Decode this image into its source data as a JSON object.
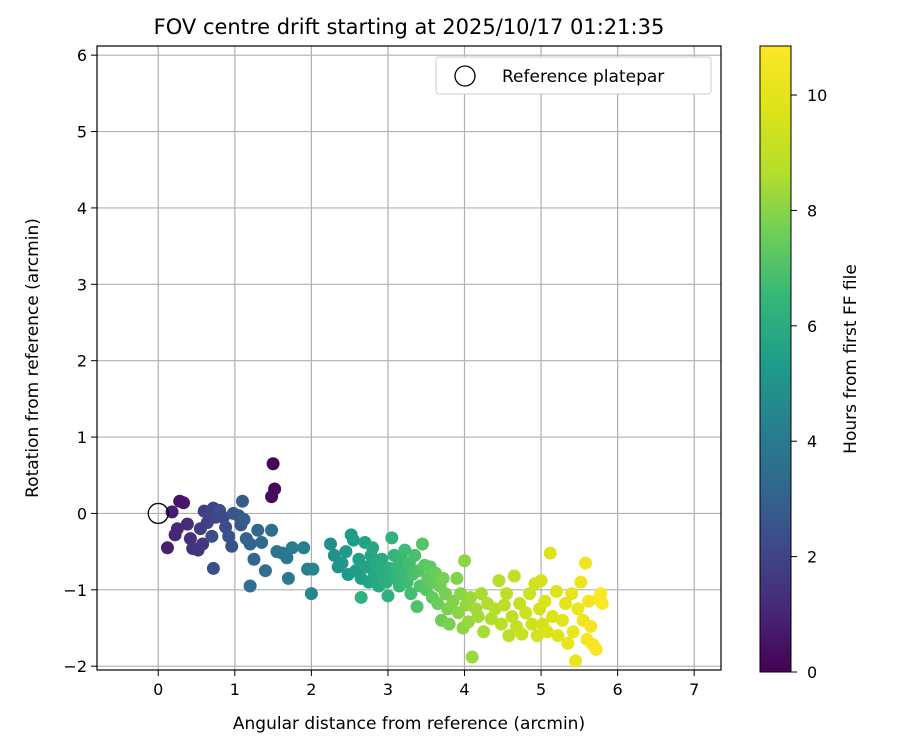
{
  "chart_data": {
    "type": "scatter",
    "title": "FOV centre drift starting at 2025/10/17 01:21:35",
    "xlabel": "Angular distance from reference (arcmin)",
    "ylabel": "Rotation from reference (arcmin)",
    "xlim": [
      -0.8,
      7.35
    ],
    "ylim": [
      -2.05,
      6.12
    ],
    "xticks": [
      0,
      1,
      2,
      3,
      4,
      5,
      6,
      7
    ],
    "yticks": [
      -2,
      -1,
      0,
      1,
      2,
      3,
      4,
      5,
      6
    ],
    "xtick_labels": [
      "0",
      "1",
      "2",
      "3",
      "4",
      "5",
      "6",
      "7"
    ],
    "ytick_labels": [
      "−2",
      "−1",
      "0",
      "1",
      "2",
      "3",
      "4",
      "5",
      "6"
    ],
    "grid": true,
    "legend": {
      "label": "Reference platepar",
      "position": "top-right"
    },
    "reference_point": {
      "x": 0,
      "y": 0
    },
    "colorbar": {
      "label": "Hours from first FF file",
      "range": [
        0,
        10.85
      ],
      "ticks": [
        0,
        2,
        4,
        6,
        8,
        10
      ],
      "tick_labels": [
        "0",
        "2",
        "4",
        "6",
        "8",
        "10"
      ],
      "colormap": "viridis"
    },
    "series": [
      {
        "name": "FOV centre drift",
        "points": [
          [
            1.5,
            0.65,
            0.1
          ],
          [
            1.52,
            0.32,
            0.2
          ],
          [
            1.48,
            0.22,
            0.3
          ],
          [
            0.28,
            0.16,
            0.5
          ],
          [
            0.33,
            0.14,
            0.6
          ],
          [
            0.18,
            0.02,
            0.8
          ],
          [
            0.12,
            -0.45,
            0.9
          ],
          [
            0.22,
            -0.28,
            1.0
          ],
          [
            0.25,
            -0.2,
            1.1
          ],
          [
            0.38,
            -0.14,
            1.2
          ],
          [
            0.42,
            -0.33,
            1.3
          ],
          [
            0.45,
            -0.46,
            1.4
          ],
          [
            0.52,
            -0.48,
            1.5
          ],
          [
            0.58,
            -0.4,
            1.6
          ],
          [
            0.55,
            -0.2,
            1.7
          ],
          [
            0.6,
            0.03,
            1.8
          ],
          [
            0.64,
            -0.12,
            1.9
          ],
          [
            0.7,
            0.0,
            2.0
          ],
          [
            0.72,
            0.07,
            2.0
          ],
          [
            0.75,
            -0.05,
            2.1
          ],
          [
            0.8,
            0.04,
            2.2
          ],
          [
            0.85,
            -0.05,
            2.2
          ],
          [
            0.88,
            -0.18,
            2.3
          ],
          [
            0.7,
            -0.3,
            2.3
          ],
          [
            0.72,
            -0.72,
            2.4
          ],
          [
            0.92,
            -0.3,
            2.5
          ],
          [
            0.96,
            -0.43,
            2.5
          ],
          [
            0.98,
            0.0,
            2.6
          ],
          [
            1.05,
            -0.03,
            2.7
          ],
          [
            1.08,
            -0.15,
            2.7
          ],
          [
            1.1,
            0.16,
            2.8
          ],
          [
            1.12,
            -0.08,
            2.9
          ],
          [
            1.15,
            -0.33,
            3.0
          ],
          [
            1.2,
            -0.4,
            3.1
          ],
          [
            1.25,
            -0.6,
            3.2
          ],
          [
            1.3,
            -0.22,
            3.3
          ],
          [
            1.35,
            -0.38,
            3.4
          ],
          [
            1.4,
            -0.75,
            3.5
          ],
          [
            1.48,
            -0.22,
            3.6
          ],
          [
            1.2,
            -0.95,
            3.6
          ],
          [
            1.55,
            -0.5,
            3.7
          ],
          [
            1.62,
            -0.52,
            3.8
          ],
          [
            1.68,
            -0.58,
            3.9
          ],
          [
            1.7,
            -0.85,
            4.0
          ],
          [
            1.75,
            -0.45,
            4.1
          ],
          [
            1.9,
            -0.45,
            4.2
          ],
          [
            1.95,
            -0.73,
            4.3
          ],
          [
            2.02,
            -0.73,
            4.4
          ],
          [
            2.0,
            -1.05,
            4.5
          ],
          [
            2.25,
            -0.4,
            4.8
          ],
          [
            2.3,
            -0.55,
            4.9
          ],
          [
            2.35,
            -0.7,
            5.0
          ],
          [
            2.4,
            -0.65,
            5.1
          ],
          [
            2.45,
            -0.5,
            5.2
          ],
          [
            2.48,
            -0.8,
            5.2
          ],
          [
            2.52,
            -0.28,
            5.3
          ],
          [
            2.55,
            -0.35,
            5.4
          ],
          [
            2.58,
            -0.75,
            5.4
          ],
          [
            2.62,
            -0.6,
            5.5
          ],
          [
            2.65,
            -0.85,
            5.5
          ],
          [
            2.7,
            -0.38,
            5.6
          ],
          [
            2.72,
            -0.7,
            5.6
          ],
          [
            2.75,
            -0.9,
            5.7
          ],
          [
            2.78,
            -0.55,
            5.7
          ],
          [
            2.8,
            -0.45,
            5.8
          ],
          [
            2.82,
            -0.8,
            5.8
          ],
          [
            2.85,
            -0.65,
            5.9
          ],
          [
            2.88,
            -0.95,
            5.9
          ],
          [
            2.9,
            -0.75,
            6.0
          ],
          [
            2.92,
            -0.6,
            6.0
          ],
          [
            2.95,
            -0.85,
            6.1
          ],
          [
            2.98,
            -0.9,
            6.1
          ],
          [
            3.0,
            -1.08,
            6.2
          ],
          [
            3.02,
            -0.72,
            6.2
          ],
          [
            3.05,
            -0.32,
            6.3
          ],
          [
            2.65,
            -1.1,
            6.3
          ],
          [
            3.08,
            -0.55,
            6.4
          ],
          [
            3.1,
            -0.85,
            6.4
          ],
          [
            3.12,
            -0.7,
            6.5
          ],
          [
            3.15,
            -0.95,
            6.5
          ],
          [
            3.18,
            -0.6,
            6.6
          ],
          [
            3.2,
            -0.78,
            6.6
          ],
          [
            3.22,
            -0.48,
            6.7
          ],
          [
            3.25,
            -0.9,
            6.7
          ],
          [
            3.28,
            -0.65,
            6.8
          ],
          [
            3.3,
            -1.05,
            6.8
          ],
          [
            3.32,
            -0.8,
            6.9
          ],
          [
            3.35,
            -0.55,
            6.9
          ],
          [
            3.38,
            -1.22,
            7.0
          ],
          [
            3.4,
            -0.75,
            7.0
          ],
          [
            3.42,
            -0.95,
            7.1
          ],
          [
            3.45,
            -0.4,
            7.1
          ],
          [
            3.48,
            -0.68,
            7.2
          ],
          [
            3.5,
            -1.0,
            7.2
          ],
          [
            3.52,
            -0.85,
            7.3
          ],
          [
            3.55,
            -0.7,
            7.3
          ],
          [
            3.58,
            -1.1,
            7.4
          ],
          [
            3.6,
            -0.9,
            7.4
          ],
          [
            3.62,
            -0.78,
            7.5
          ],
          [
            3.65,
            -1.18,
            7.5
          ],
          [
            3.68,
            -0.95,
            7.6
          ],
          [
            3.7,
            -1.4,
            7.6
          ],
          [
            3.72,
            -0.85,
            7.7
          ],
          [
            3.75,
            -1.05,
            7.7
          ],
          [
            3.78,
            -1.25,
            7.8
          ],
          [
            3.8,
            -1.45,
            7.8
          ],
          [
            3.85,
            -1.15,
            7.9
          ],
          [
            3.9,
            -0.85,
            7.9
          ],
          [
            3.92,
            -1.3,
            8.0
          ],
          [
            3.95,
            -1.05,
            8.0
          ],
          [
            3.98,
            -1.5,
            8.1
          ],
          [
            4.0,
            -0.62,
            8.1
          ],
          [
            4.02,
            -1.2,
            8.2
          ],
          [
            4.05,
            -1.42,
            8.2
          ],
          [
            4.08,
            -1.1,
            8.3
          ],
          [
            4.1,
            -1.88,
            8.3
          ],
          [
            4.15,
            -1.25,
            8.4
          ],
          [
            4.18,
            -1.35,
            8.4
          ],
          [
            4.22,
            -1.05,
            8.5
          ],
          [
            4.25,
            -1.55,
            8.5
          ],
          [
            4.3,
            -1.18,
            8.6
          ],
          [
            4.35,
            -1.38,
            8.6
          ],
          [
            4.4,
            -1.25,
            8.7
          ],
          [
            4.45,
            -0.88,
            8.7
          ],
          [
            4.48,
            -1.45,
            8.8
          ],
          [
            4.52,
            -1.2,
            8.8
          ],
          [
            4.55,
            -1.05,
            8.9
          ],
          [
            4.58,
            -1.6,
            8.9
          ],
          [
            4.62,
            -1.35,
            9.0
          ],
          [
            4.65,
            -0.82,
            9.0
          ],
          [
            4.68,
            -1.48,
            9.1
          ],
          [
            4.72,
            -1.18,
            9.1
          ],
          [
            4.75,
            -1.58,
            9.2
          ],
          [
            4.8,
            -1.3,
            9.3
          ],
          [
            4.85,
            -1.05,
            9.3
          ],
          [
            4.88,
            -1.45,
            9.4
          ],
          [
            4.92,
            -0.92,
            9.4
          ],
          [
            4.95,
            -1.6,
            9.5
          ],
          [
            4.98,
            -1.25,
            9.5
          ],
          [
            5.0,
            -0.88,
            9.6
          ],
          [
            5.02,
            -1.45,
            9.6
          ],
          [
            5.05,
            -1.15,
            9.7
          ],
          [
            5.08,
            -1.55,
            9.7
          ],
          [
            5.12,
            -0.52,
            9.8
          ],
          [
            5.15,
            -1.35,
            9.8
          ],
          [
            5.2,
            -1.02,
            9.9
          ],
          [
            5.22,
            -1.6,
            9.9
          ],
          [
            5.28,
            -1.4,
            10.0
          ],
          [
            5.32,
            -1.18,
            10.0
          ],
          [
            5.35,
            -1.7,
            10.1
          ],
          [
            5.4,
            -1.05,
            10.1
          ],
          [
            5.42,
            -1.55,
            10.2
          ],
          [
            5.45,
            -1.93,
            10.2
          ],
          [
            5.48,
            -1.25,
            10.3
          ],
          [
            5.52,
            -0.9,
            10.3
          ],
          [
            5.55,
            -1.4,
            10.4
          ],
          [
            5.58,
            -0.65,
            10.4
          ],
          [
            5.6,
            -1.65,
            10.5
          ],
          [
            5.62,
            -1.15,
            10.5
          ],
          [
            5.65,
            -1.48,
            10.6
          ],
          [
            5.68,
            -1.72,
            10.6
          ],
          [
            5.72,
            -1.78,
            10.7
          ],
          [
            5.75,
            -1.12,
            10.7
          ],
          [
            5.8,
            -1.18,
            10.8
          ],
          [
            5.78,
            -1.05,
            10.8
          ]
        ]
      }
    ]
  }
}
